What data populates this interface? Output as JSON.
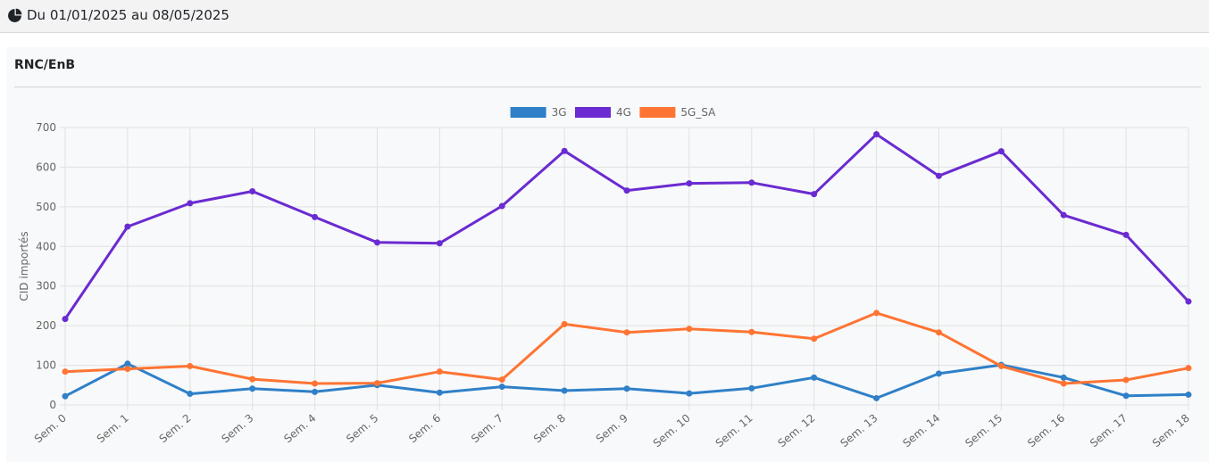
{
  "header": {
    "icon": "pie-chart-icon",
    "date_range": "Du 01/01/2025 au 08/05/2025"
  },
  "card": {
    "title": "RNC/EnB"
  },
  "chart_data": {
    "type": "line",
    "ylabel": "CID importés",
    "xlabel": "",
    "ylim": [
      0,
      700
    ],
    "yticks": [
      0,
      100,
      200,
      300,
      400,
      500,
      600,
      700
    ],
    "grid": true,
    "legend_position": "top",
    "categories": [
      "Sem. 0",
      "Sem. 1",
      "Sem. 2",
      "Sem. 3",
      "Sem. 4",
      "Sem. 5",
      "Sem. 6",
      "Sem. 7",
      "Sem. 8",
      "Sem. 9",
      "Sem. 10",
      "Sem. 11",
      "Sem. 12",
      "Sem. 13",
      "Sem. 14",
      "Sem. 15",
      "Sem. 16",
      "Sem. 17",
      "Sem. 18"
    ],
    "series": [
      {
        "name": "3G",
        "color": "#2f80c8",
        "values": [
          22,
          104,
          28,
          41,
          33,
          50,
          31,
          46,
          36,
          41,
          29,
          42,
          69,
          17,
          79,
          101,
          69,
          23,
          26
        ]
      },
      {
        "name": "4G",
        "color": "#6a2bd1",
        "values": [
          217,
          450,
          509,
          539,
          474,
          410,
          408,
          502,
          641,
          541,
          559,
          561,
          532,
          683,
          578,
          640,
          479,
          429,
          261
        ]
      },
      {
        "name": "5G_SA",
        "color": "#ff7433",
        "values": [
          84,
          91,
          98,
          65,
          54,
          55,
          84,
          64,
          204,
          183,
          192,
          184,
          167,
          232,
          183,
          98,
          54,
          63,
          93
        ]
      }
    ]
  }
}
